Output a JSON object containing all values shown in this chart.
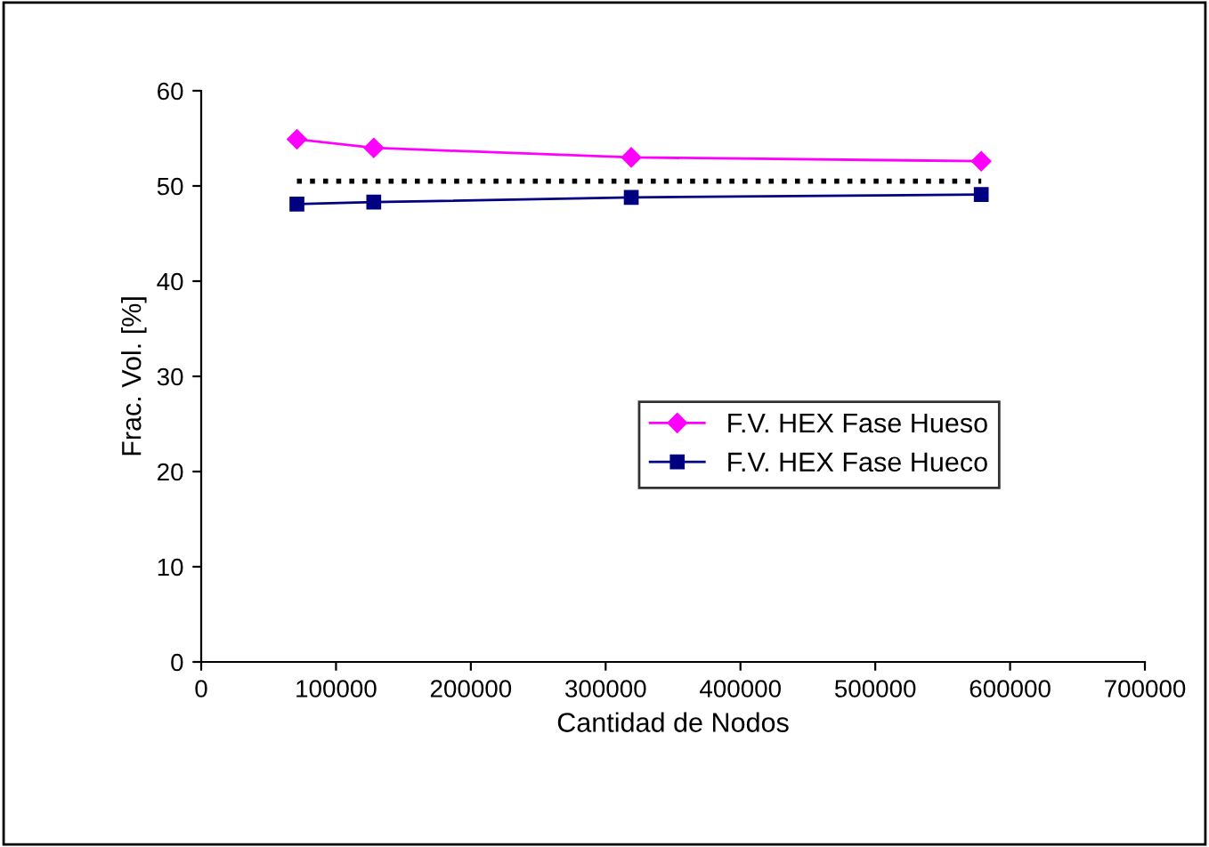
{
  "chart_data": {
    "type": "line",
    "xlabel": "Cantidad de Nodos",
    "ylabel": "Frac. Vol. [%]",
    "xlim": [
      0,
      700000
    ],
    "xticks": [
      0,
      100000,
      200000,
      300000,
      400000,
      500000,
      600000,
      700000
    ],
    "ylim": [
      0,
      60
    ],
    "yticks": [
      0,
      10,
      20,
      30,
      40,
      50,
      60
    ],
    "grid": false,
    "legend": "right",
    "series": [
      {
        "name": "F.V. HEX Fase Hueso",
        "color": "#ff00ff",
        "marker": "diamond",
        "x": [
          71000,
          128000,
          319000,
          578600
        ],
        "values": [
          54.9,
          54.0,
          53.0,
          52.6
        ]
      },
      {
        "name": "F.V. HEX Fase Hueco",
        "color": "#000080",
        "marker": "square",
        "x": [
          71000,
          128000,
          319000,
          578600
        ],
        "values": [
          48.1,
          48.3,
          48.8,
          49.1
        ]
      },
      {
        "color": "#000000",
        "marker": "none",
        "line_style": "dotted",
        "x": [
          71000,
          578600
        ],
        "values": [
          50.5,
          50.5
        ]
      }
    ]
  }
}
